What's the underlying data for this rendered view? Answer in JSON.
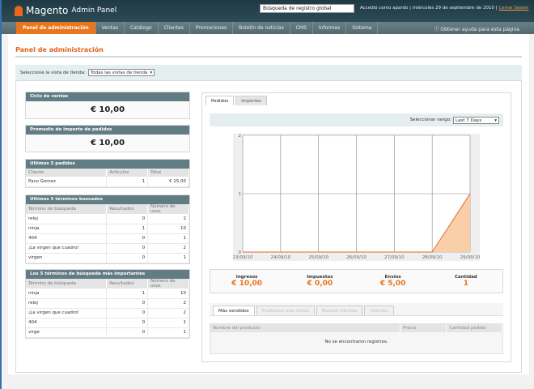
{
  "header": {
    "logo": "Magento",
    "logo_suffix": "Admin Panel",
    "search_value": "Búsqueda de registro global",
    "user_info": "Accedió como apardo | miércoles 29 de septiembre de 2010 |",
    "logout": "Cerrar Sesión"
  },
  "nav": {
    "items": [
      "Panel de administración",
      "Ventas",
      "Catálogo",
      "Clientes",
      "Promociones",
      "Boletín de noticias",
      "CMS",
      "Informes",
      "Sistema"
    ],
    "active": 0,
    "help": "Obtener ayuda para esta página"
  },
  "page": {
    "title": "Panel de administración",
    "store_label": "Seleccione la vista de tienda:",
    "store_value": "Todas las vistas de tienda"
  },
  "colors": {
    "accent": "#e8761e",
    "box_header": "#627c84",
    "header_bg": "#1f3a44"
  },
  "lifetime_sales": {
    "title": "Ciclo de ventas",
    "value": "€ 10,00"
  },
  "avg_order": {
    "title": "Promedio de importe de pedidos",
    "value": "€ 10,00"
  },
  "last_orders": {
    "title": "Ultimos 5 pedidos",
    "columns": [
      "Cliente",
      "Artículos",
      "Total"
    ],
    "rows": [
      [
        "Paco Gomez",
        "1",
        "€ 15,00"
      ]
    ]
  },
  "last_search": {
    "title": "Ultimos 5 términos buscados",
    "columns": [
      "Término de búsqueda",
      "Resultados",
      "Número de usos"
    ],
    "rows": [
      [
        "reloj",
        "0",
        "2"
      ],
      [
        "ninja",
        "1",
        "10"
      ],
      [
        "404",
        "0",
        "1"
      ],
      [
        "¡La virgen que cuadro!",
        "0",
        "2"
      ],
      [
        "virgen",
        "0",
        "1"
      ]
    ]
  },
  "top_search": {
    "title": "Los 5 términos de búsqueda más importantes",
    "columns": [
      "Término de búsqueda",
      "Resultados",
      "Número de usos"
    ],
    "rows": [
      [
        "ninja",
        "1",
        "10"
      ],
      [
        "reloj",
        "0",
        "2"
      ],
      [
        "¡La virgen que cuadro!",
        "0",
        "2"
      ],
      [
        "404",
        "0",
        "1"
      ],
      [
        "virge",
        "0",
        "1"
      ]
    ]
  },
  "chart_tabs": [
    "Pedidos",
    "Importes"
  ],
  "range": {
    "label": "Seleccionar rango:",
    "value": "Last 7 Days"
  },
  "chart_data": {
    "type": "area",
    "x": [
      "23/09/10",
      "24/09/10",
      "25/09/10",
      "26/09/10",
      "27/09/10",
      "28/09/10",
      "29/09/10"
    ],
    "values": [
      0,
      0,
      0,
      0,
      0,
      0,
      1
    ],
    "ylim": [
      0,
      2
    ],
    "yticks": [
      "0",
      "1",
      "2"
    ],
    "grid": true,
    "line_color": "#e8662a",
    "fill_color": "#f8cfa8"
  },
  "totals": [
    {
      "label": "Ingresos",
      "value": "€ 10,00"
    },
    {
      "label": "Impuestos",
      "value": "€ 0,00"
    },
    {
      "label": "Envíos",
      "value": "€ 5,00"
    },
    {
      "label": "Cantidad",
      "value": "1"
    }
  ],
  "bottom_tabs": [
    "Más vendidos",
    "Productos más vistos",
    "Nuevos clientes",
    "Clientes"
  ],
  "products": {
    "columns": [
      "Nombre del producto",
      "Precio",
      "Cantidad pedida"
    ],
    "empty": "No se encontraron registros."
  }
}
